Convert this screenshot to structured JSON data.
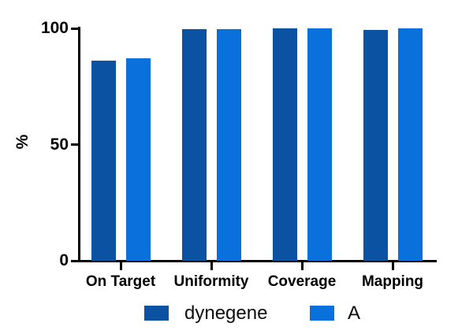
{
  "chart_data": {
    "type": "bar",
    "title": "",
    "categories": [
      "On Target",
      "Uniformity",
      "Coverage",
      "Mapping"
    ],
    "series": [
      {
        "name": "dynegene",
        "color": "#0B52A2",
        "values": [
          86,
          99.8,
          100,
          99.2
        ]
      },
      {
        "name": "A",
        "color": "#0A70DC",
        "values": [
          87,
          99.6,
          100,
          100
        ]
      }
    ],
    "xlabel": "",
    "ylabel": "%",
    "yticks": [
      0,
      50,
      100
    ],
    "ylim": [
      0,
      105
    ],
    "grid": false,
    "legend_position": "bottom",
    "axis_color": "#000000",
    "background_color": "#FFFFFF"
  }
}
